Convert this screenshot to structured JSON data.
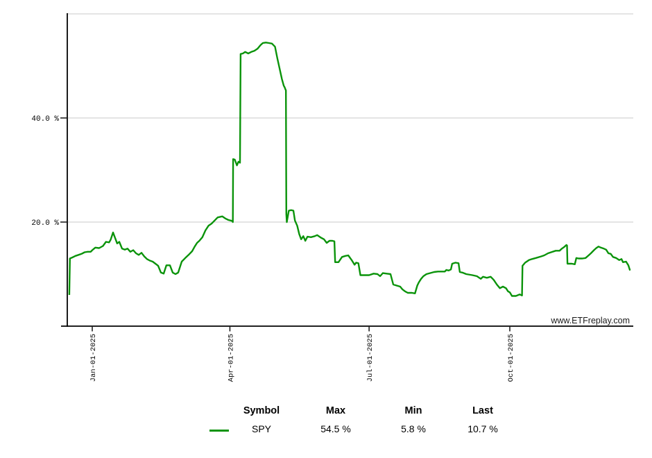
{
  "watermark": "www.ETFreplay.com",
  "colors": {
    "line": "#0a930a",
    "grid": "#c9c9c9",
    "axis": "#000000",
    "tick_text": "#000000",
    "watermark_text": "#1a1a1a"
  },
  "chart_data": {
    "type": "line",
    "title": "",
    "grid": true,
    "legend_position": "bottom",
    "x_axis": {
      "tick_labels": [
        "Jan-01-2025",
        "Apr-01-2025",
        "Jul-01-2025",
        "Oct-01-2025"
      ],
      "tick_days": [
        0,
        90,
        181,
        273
      ],
      "domain_days": [
        -15.5,
        352.5
      ]
    },
    "y_axis": {
      "unit": "%",
      "tick_labels": [
        "20.0 %",
        "40.0 %"
      ],
      "tick_values": [
        20,
        40
      ],
      "grid_values": [
        20,
        40,
        60
      ],
      "domain": [
        0,
        60
      ]
    },
    "series": [
      {
        "name": "SPY",
        "color": "#0a930a",
        "stats": {
          "max": "54.5 %",
          "min": "5.8 %",
          "last": "10.7 %"
        },
        "points": [
          [
            -15.0,
            6.0
          ],
          [
            -14.6,
            13.0
          ],
          [
            -13,
            13.2
          ],
          [
            -11,
            13.5
          ],
          [
            -9,
            13.7
          ],
          [
            -7,
            13.9
          ],
          [
            -5,
            14.2
          ],
          [
            -3,
            14.3
          ],
          [
            -1,
            14.3
          ],
          [
            0,
            14.6
          ],
          [
            2,
            15.1
          ],
          [
            4.5,
            15.0
          ],
          [
            7,
            15.4
          ],
          [
            9,
            16.2
          ],
          [
            11,
            16.1
          ],
          [
            12,
            16.6
          ],
          [
            13.6,
            18.0
          ],
          [
            15,
            16.9
          ],
          [
            16.3,
            15.9
          ],
          [
            17.7,
            16.2
          ],
          [
            19.5,
            14.9
          ],
          [
            21.3,
            14.7
          ],
          [
            23.1,
            14.9
          ],
          [
            24.9,
            14.3
          ],
          [
            26.8,
            14.6
          ],
          [
            28.6,
            14.0
          ],
          [
            30.4,
            13.7
          ],
          [
            32.2,
            14.1
          ],
          [
            34,
            13.4
          ],
          [
            35.8,
            12.9
          ],
          [
            37.6,
            12.6
          ],
          [
            39.5,
            12.4
          ],
          [
            41.3,
            12.0
          ],
          [
            43.1,
            11.6
          ],
          [
            44.9,
            10.3
          ],
          [
            46.7,
            10.1
          ],
          [
            48.5,
            11.7
          ],
          [
            50.8,
            11.7
          ],
          [
            52.6,
            10.3
          ],
          [
            54.4,
            10.0
          ],
          [
            56.2,
            10.3
          ],
          [
            58.5,
            12.4
          ],
          [
            60.8,
            13.1
          ],
          [
            63,
            13.7
          ],
          [
            65.3,
            14.4
          ],
          [
            67,
            15.3
          ],
          [
            68.5,
            16.0
          ],
          [
            70,
            16.4
          ],
          [
            72,
            17.1
          ],
          [
            74,
            18.4
          ],
          [
            76,
            19.3
          ],
          [
            78,
            19.7
          ],
          [
            80,
            20.3
          ],
          [
            82,
            20.9
          ],
          [
            85,
            21.1
          ],
          [
            87,
            20.7
          ],
          [
            89,
            20.4
          ],
          [
            90.5,
            20.3
          ],
          [
            91.6,
            20.2
          ],
          [
            91.9,
            20.0
          ],
          [
            92.1,
            32.1
          ],
          [
            93.2,
            32.0
          ],
          [
            94.6,
            30.9
          ],
          [
            95.6,
            31.6
          ],
          [
            96.6,
            31.4
          ],
          [
            97.0,
            52.3
          ],
          [
            98.5,
            52.4
          ],
          [
            100,
            52.7
          ],
          [
            102,
            52.4
          ],
          [
            104,
            52.7
          ],
          [
            106,
            52.9
          ],
          [
            108,
            53.3
          ],
          [
            110,
            54.0
          ],
          [
            111.5,
            54.4
          ],
          [
            113.5,
            54.5
          ],
          [
            115.5,
            54.4
          ],
          [
            117.5,
            54.3
          ],
          [
            119.5,
            53.7
          ],
          [
            121,
            51.5
          ],
          [
            122.5,
            49.5
          ],
          [
            124,
            47.5
          ],
          [
            125.2,
            46.2
          ],
          [
            125.8,
            45.9
          ],
          [
            126.3,
            45.5
          ],
          [
            126.6,
            45.3
          ],
          [
            126.9,
            21.5
          ],
          [
            127.2,
            20.0
          ],
          [
            128.5,
            22.2
          ],
          [
            130,
            22.3
          ],
          [
            131.5,
            22.2
          ],
          [
            132.5,
            20.3
          ],
          [
            134,
            19.3
          ],
          [
            135.3,
            17.7
          ],
          [
            136.6,
            16.7
          ],
          [
            138,
            17.3
          ],
          [
            139.3,
            16.4
          ],
          [
            140.7,
            17.2
          ],
          [
            143,
            17.1
          ],
          [
            145.5,
            17.3
          ],
          [
            147,
            17.5
          ],
          [
            149.5,
            17.0
          ],
          [
            151.5,
            16.7
          ],
          [
            153.3,
            16.0
          ],
          [
            155.1,
            16.4
          ],
          [
            157,
            16.4
          ],
          [
            158.3,
            16.3
          ],
          [
            158.8,
            12.3
          ],
          [
            161,
            12.3
          ],
          [
            163.3,
            13.3
          ],
          [
            165.5,
            13.5
          ],
          [
            167.4,
            13.6
          ],
          [
            169.6,
            12.7
          ],
          [
            171.5,
            11.8
          ],
          [
            172.5,
            12.2
          ],
          [
            174,
            12.1
          ],
          [
            175.3,
            9.8
          ],
          [
            178,
            9.8
          ],
          [
            181,
            9.8
          ],
          [
            184,
            10.1
          ],
          [
            186.5,
            10.0
          ],
          [
            188.2,
            9.6
          ],
          [
            190,
            10.2
          ],
          [
            192.5,
            10.1
          ],
          [
            195,
            10.0
          ],
          [
            196.8,
            8.0
          ],
          [
            199,
            7.8
          ],
          [
            201.3,
            7.6
          ],
          [
            202.7,
            7.1
          ],
          [
            204.5,
            6.7
          ],
          [
            206.3,
            6.4
          ],
          [
            209,
            6.4
          ],
          [
            211,
            6.3
          ],
          [
            212.5,
            7.8
          ],
          [
            213.5,
            8.4
          ],
          [
            215,
            9.1
          ],
          [
            216.5,
            9.6
          ],
          [
            218.5,
            10.0
          ],
          [
            221,
            10.2
          ],
          [
            223.5,
            10.4
          ],
          [
            226,
            10.5
          ],
          [
            230.5,
            10.5
          ],
          [
            231.5,
            10.8
          ],
          [
            233,
            10.7
          ],
          [
            234.5,
            10.9
          ],
          [
            235.3,
            12.0
          ],
          [
            237.5,
            12.2
          ],
          [
            239.5,
            12.1
          ],
          [
            240.3,
            10.4
          ],
          [
            242,
            10.3
          ],
          [
            244.5,
            10.0
          ],
          [
            248.5,
            9.8
          ],
          [
            251.5,
            9.6
          ],
          [
            254,
            9.1
          ],
          [
            255.5,
            9.5
          ],
          [
            258,
            9.3
          ],
          [
            260.5,
            9.5
          ],
          [
            262.5,
            8.9
          ],
          [
            264.5,
            8.0
          ],
          [
            266.5,
            7.3
          ],
          [
            268.5,
            7.6
          ],
          [
            270.5,
            7.3
          ],
          [
            271.8,
            6.7
          ],
          [
            273,
            6.5
          ],
          [
            274.4,
            5.8
          ],
          [
            277,
            5.8
          ],
          [
            279.5,
            6.1
          ],
          [
            281,
            5.9
          ],
          [
            281.3,
            11.6
          ],
          [
            283,
            12.2
          ],
          [
            285.5,
            12.7
          ],
          [
            287.5,
            12.9
          ],
          [
            290,
            13.1
          ],
          [
            293.5,
            13.4
          ],
          [
            295.5,
            13.6
          ],
          [
            298,
            14.0
          ],
          [
            300,
            14.2
          ],
          [
            303,
            14.5
          ],
          [
            305.5,
            14.5
          ],
          [
            307,
            14.9
          ],
          [
            308.5,
            15.2
          ],
          [
            310,
            15.6
          ],
          [
            310.4,
            15.5
          ],
          [
            310.7,
            12.0
          ],
          [
            313.5,
            12.0
          ],
          [
            315.5,
            11.9
          ],
          [
            316.5,
            13.1
          ],
          [
            318,
            13.0
          ],
          [
            320.5,
            13.0
          ],
          [
            322.5,
            13.1
          ],
          [
            324.5,
            13.6
          ],
          [
            326,
            14.0
          ],
          [
            328,
            14.6
          ],
          [
            329.5,
            15.0
          ],
          [
            331,
            15.3
          ],
          [
            332.5,
            15.1
          ],
          [
            334.5,
            14.9
          ],
          [
            336,
            14.7
          ],
          [
            337.5,
            14.0
          ],
          [
            339,
            13.9
          ],
          [
            340.5,
            13.3
          ],
          [
            342.5,
            13.1
          ],
          [
            344.5,
            12.7
          ],
          [
            346,
            12.9
          ],
          [
            347,
            12.3
          ],
          [
            349,
            12.4
          ],
          [
            350.5,
            11.7
          ],
          [
            351.6,
            10.7
          ]
        ]
      }
    ]
  },
  "legend": {
    "headers": {
      "symbol": "Symbol",
      "max": "Max",
      "min": "Min",
      "last": "Last"
    },
    "rows": [
      {
        "symbol": "SPY",
        "max": "54.5 %",
        "min": "5.8 %",
        "last": "10.7 %"
      }
    ]
  }
}
